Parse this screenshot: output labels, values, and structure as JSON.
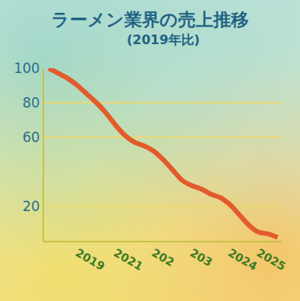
{
  "chart_data": {
    "type": "line",
    "title": "ラーメン業界の売上推移",
    "subtitle": "(2019年比)",
    "categories": [
      null,
      null,
      null,
      "2019",
      null,
      null,
      null,
      "2021",
      null,
      null,
      null,
      "202",
      null,
      null,
      null,
      "203",
      null,
      null,
      null,
      "2024",
      null,
      null,
      "2025",
      null,
      null
    ],
    "values": [
      100,
      97,
      94,
      90,
      85,
      80,
      74,
      67,
      61,
      57,
      55,
      52,
      47,
      41,
      35,
      32,
      30,
      27,
      25,
      21,
      15,
      9,
      5,
      4,
      2
    ],
    "color": "#e35b2c",
    "ylim": [
      0,
      100
    ],
    "yticks": [
      20,
      60,
      80,
      100
    ],
    "grid": true
  }
}
